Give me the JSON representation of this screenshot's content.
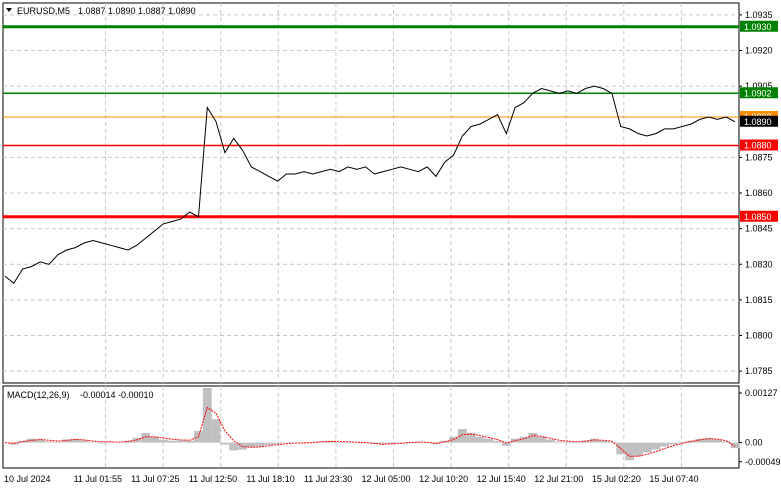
{
  "header": {
    "symbol": "EURUSD,M5",
    "ohlc": "1.0887 1.0890 1.0887 1.0890"
  },
  "macd_panel": {
    "label": "MACD(12,26,9)",
    "values": "-0.00014 -0.00010"
  },
  "colors": {
    "price_line": "#000000",
    "grid": "#c8c8c8",
    "resistance": "#008000",
    "support": "#ff0000",
    "bid": "#ff8c00",
    "histogram": "#c0c0c0",
    "signal": "#ff0000"
  },
  "chart_data": {
    "type": "line",
    "x_ticks": [
      "10 Jul 2024",
      "11 Jul 01:55",
      "11 Jul 07:25",
      "11 Jul 12:50",
      "11 Jul 18:10",
      "11 Jul 23:30",
      "12 Jul 05:00",
      "12 Jul 10:20",
      "12 Jul 15:40",
      "12 Jul 21:00",
      "15 Jul 02:20",
      "15 Jul 07:40"
    ],
    "y_ticks": [
      "1.0935",
      "1.0920",
      "1.0905",
      "1.0875",
      "1.0860",
      "1.0845",
      "1.0830",
      "1.0815",
      "1.0800",
      "1.0785"
    ],
    "ylim": [
      1.078,
      1.094
    ],
    "levels": [
      {
        "label": "1.0930",
        "value": 1.093,
        "color": "#008000",
        "width": 3
      },
      {
        "label": "1.0902",
        "value": 1.0902,
        "color": "#008000",
        "width": 1.5
      },
      {
        "label": "1.0892",
        "value": 1.0892,
        "color": "#ff8c00",
        "width": 1
      },
      {
        "label": "1.0890",
        "value": 1.089,
        "color": "#000000",
        "width": 0
      },
      {
        "label": "1.0880",
        "value": 1.088,
        "color": "#ff0000",
        "width": 1.5
      },
      {
        "label": "1.0850",
        "value": 1.085,
        "color": "#ff0000",
        "width": 3
      }
    ],
    "price": [
      1.0825,
      1.0822,
      1.0828,
      1.0829,
      1.0831,
      1.083,
      1.0834,
      1.0836,
      1.0837,
      1.0839,
      1.084,
      1.0839,
      1.0838,
      1.0837,
      1.0836,
      1.0838,
      1.0841,
      1.0844,
      1.0847,
      1.0848,
      1.0849,
      1.0852,
      1.085,
      1.0896,
      1.089,
      1.0877,
      1.0883,
      1.0878,
      1.0871,
      1.0869,
      1.0867,
      1.0865,
      1.0868,
      1.0868,
      1.0869,
      1.0868,
      1.0869,
      1.087,
      1.0869,
      1.0871,
      1.087,
      1.0871,
      1.0868,
      1.0869,
      1.087,
      1.0871,
      1.087,
      1.0869,
      1.0871,
      1.0867,
      1.0873,
      1.0876,
      1.0884,
      1.0888,
      1.0889,
      1.0891,
      1.0893,
      1.0885,
      1.0896,
      1.0898,
      1.0902,
      1.0904,
      1.0903,
      1.0902,
      1.0903,
      1.0902,
      1.0904,
      1.0905,
      1.0904,
      1.0902,
      1.0888,
      1.0887,
      1.0885,
      1.0884,
      1.0885,
      1.0887,
      1.0887,
      1.0888,
      1.0889,
      1.0891,
      1.0892,
      1.0891,
      1.0892,
      1.089
    ],
    "macd_ticks": [
      "0.00127",
      "0.00",
      "-0.00049"
    ],
    "macd_ylim": [
      -0.00065,
      0.00145
    ],
    "macd_histogram": [
      0.0,
      -5e-05,
      5e-05,
      0.0001,
      8e-05,
      3e-05,
      2e-05,
      8e-05,
      0.0001,
      6e-05,
      1e-05,
      -2e-05,
      2e-05,
      0.0,
      5e-05,
      0.00012,
      0.00025,
      0.00015,
      8e-05,
      5e-05,
      6e-05,
      5e-05,
      0.0003,
      0.0014,
      0.0006,
      -5e-05,
      -0.0002,
      -0.00018,
      -0.00012,
      -0.0001,
      -6e-05,
      -3e-05,
      -1e-05,
      0.0,
      -2e-05,
      1e-05,
      3e-05,
      4e-05,
      2e-05,
      1e-05,
      0.0,
      -1e-05,
      -3e-05,
      -5e-05,
      -3e-05,
      -1e-05,
      1e-05,
      2e-05,
      0.0,
      -4e-05,
      5e-05,
      0.00015,
      0.00035,
      0.00025,
      0.00015,
      0.0001,
      5e-05,
      -8e-05,
      0.0001,
      0.00015,
      0.00025,
      0.00015,
      8e-05,
      3e-05,
      2e-05,
      1e-05,
      5e-05,
      0.0001,
      5e-05,
      2e-05,
      -0.0003,
      -0.00045,
      -0.00035,
      -0.00025,
      -0.00018,
      -0.0001,
      -5e-05,
      2e-05,
      5e-05,
      0.0001,
      0.00012,
      8e-05,
      3e-05,
      -0.00014
    ],
    "macd_signal": [
      0.0,
      -2e-05,
      2e-05,
      6e-05,
      8e-05,
      6e-05,
      4e-05,
      6e-05,
      8e-05,
      7e-05,
      4e-05,
      2e-05,
      2e-05,
      1e-05,
      3e-05,
      7e-05,
      0.00015,
      0.00015,
      0.00012,
      9e-05,
      7e-05,
      6e-05,
      0.00015,
      0.0009,
      0.00075,
      0.0003,
      5e-05,
      -0.0001,
      -0.00012,
      -0.00011,
      -8e-05,
      -5e-05,
      -3e-05,
      -1e-05,
      -1e-05,
      0.0,
      2e-05,
      3e-05,
      3e-05,
      2e-05,
      1e-05,
      0.0,
      -2e-05,
      -4e-05,
      -3e-05,
      -2e-05,
      0.0,
      1e-05,
      1e-05,
      -2e-05,
      2e-05,
      8e-05,
      0.0002,
      0.00022,
      0.00018,
      0.00013,
      8e-05,
      -1e-05,
      5e-05,
      0.0001,
      0.00018,
      0.00016,
      0.00011,
      6e-05,
      4e-05,
      2e-05,
      4e-05,
      7e-05,
      6e-05,
      3e-05,
      -0.00015,
      -0.00035,
      -0.00035,
      -0.0003,
      -0.00023,
      -0.00015,
      -8e-05,
      -2e-05,
      3e-05,
      7e-05,
      0.0001,
      9e-05,
      5e-05,
      -0.0001
    ]
  }
}
